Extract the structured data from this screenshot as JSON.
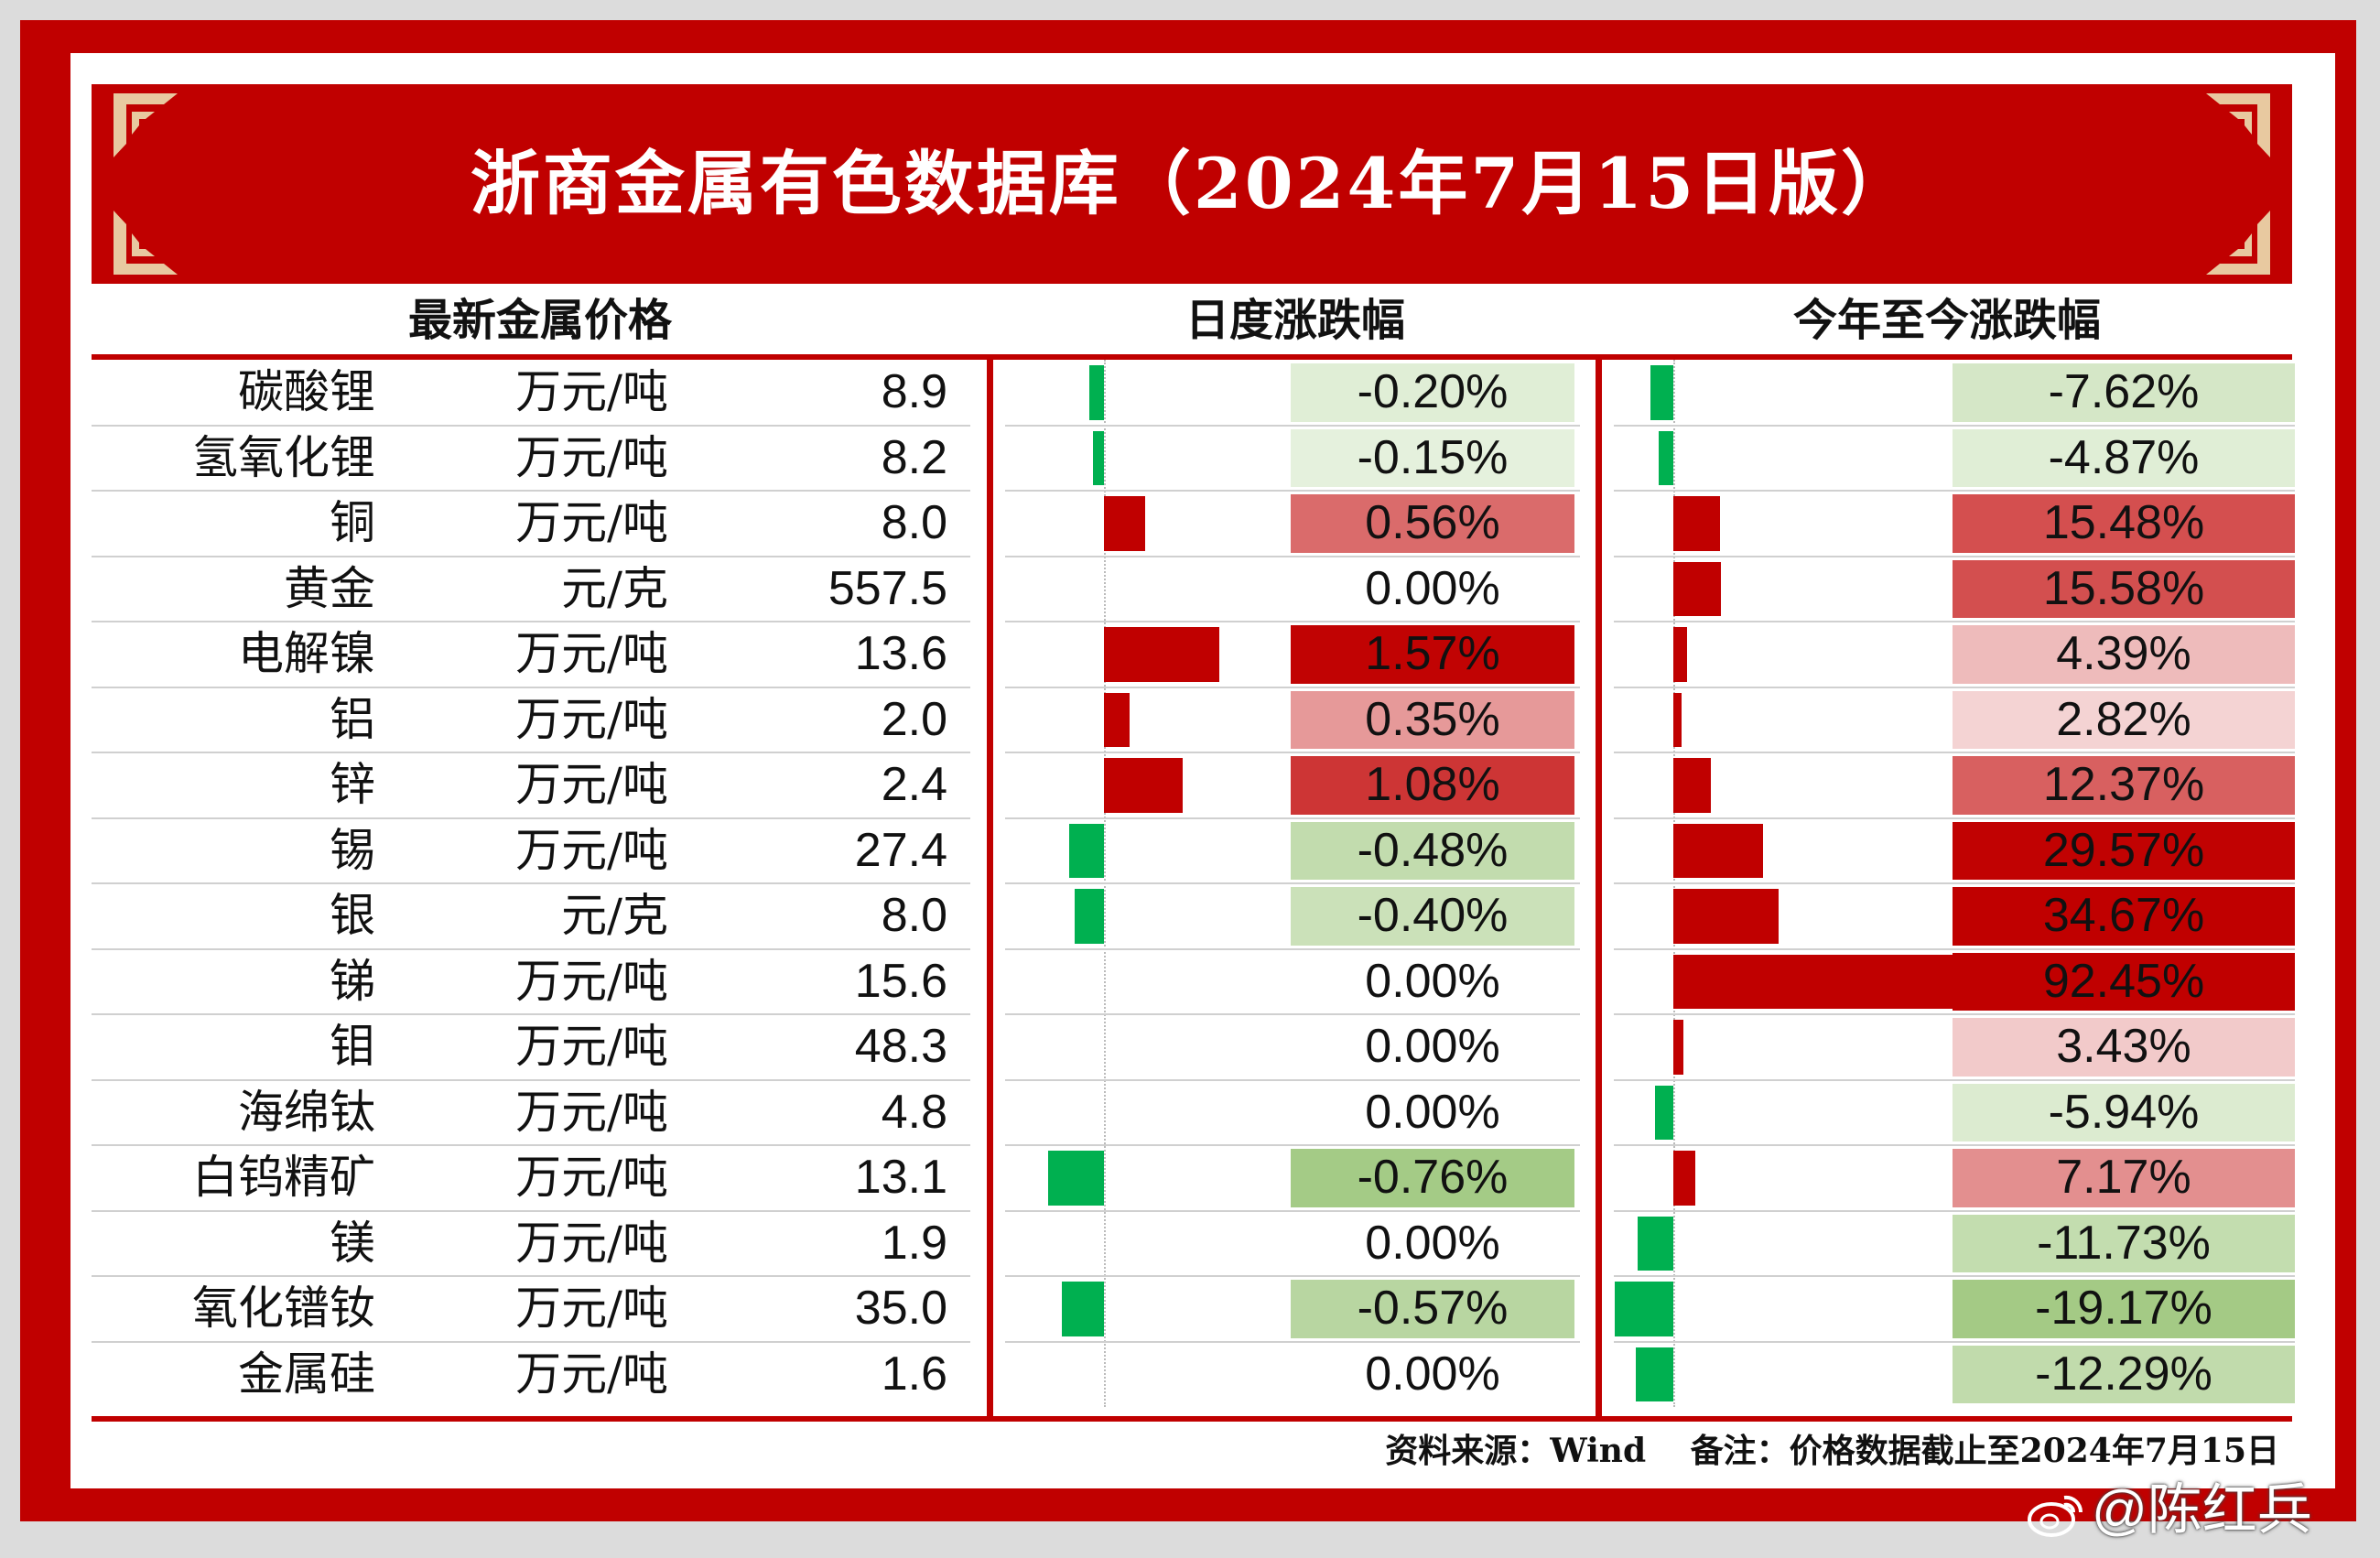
{
  "title": "浙商金属有色数据库（2024年7月15日版）",
  "sections": {
    "prices": "最新金属价格",
    "daily": "日度涨跌幅",
    "ytd": "今年至今涨跌幅"
  },
  "rows": [
    {
      "name": "碳酸锂",
      "unit": "万元/吨",
      "price": "8.9",
      "daily": "-0.20%",
      "daily_value": -0.2,
      "ytd": "-7.62%",
      "ytd_value": -7.62
    },
    {
      "name": "氢氧化锂",
      "unit": "万元/吨",
      "price": "8.2",
      "daily": "-0.15%",
      "daily_value": -0.15,
      "ytd": "-4.87%",
      "ytd_value": -4.87
    },
    {
      "name": "铜",
      "unit": "万元/吨",
      "price": "8.0",
      "daily": "0.56%",
      "daily_value": 0.56,
      "ytd": "15.48%",
      "ytd_value": 15.48
    },
    {
      "name": "黄金",
      "unit": "元/克",
      "price": "557.5",
      "daily": "0.00%",
      "daily_value": 0.0,
      "ytd": "15.58%",
      "ytd_value": 15.58
    },
    {
      "name": "电解镍",
      "unit": "万元/吨",
      "price": "13.6",
      "daily": "1.57%",
      "daily_value": 1.57,
      "ytd": "4.39%",
      "ytd_value": 4.39
    },
    {
      "name": "铝",
      "unit": "万元/吨",
      "price": "2.0",
      "daily": "0.35%",
      "daily_value": 0.35,
      "ytd": "2.82%",
      "ytd_value": 2.82
    },
    {
      "name": "锌",
      "unit": "万元/吨",
      "price": "2.4",
      "daily": "1.08%",
      "daily_value": 1.08,
      "ytd": "12.37%",
      "ytd_value": 12.37
    },
    {
      "name": "锡",
      "unit": "万元/吨",
      "price": "27.4",
      "daily": "-0.48%",
      "daily_value": -0.48,
      "ytd": "29.57%",
      "ytd_value": 29.57
    },
    {
      "name": "银",
      "unit": "元/克",
      "price": "8.0",
      "daily": "-0.40%",
      "daily_value": -0.4,
      "ytd": "34.67%",
      "ytd_value": 34.67
    },
    {
      "name": "锑",
      "unit": "万元/吨",
      "price": "15.6",
      "daily": "0.00%",
      "daily_value": 0.0,
      "ytd": "92.45%",
      "ytd_value": 92.45
    },
    {
      "name": "钼",
      "unit": "万元/吨",
      "price": "48.3",
      "daily": "0.00%",
      "daily_value": 0.0,
      "ytd": "3.43%",
      "ytd_value": 3.43
    },
    {
      "name": "海绵钛",
      "unit": "万元/吨",
      "price": "4.8",
      "daily": "0.00%",
      "daily_value": 0.0,
      "ytd": "-5.94%",
      "ytd_value": -5.94
    },
    {
      "name": "白钨精矿",
      "unit": "万元/吨",
      "price": "13.1",
      "daily": "-0.76%",
      "daily_value": -0.76,
      "ytd": "7.17%",
      "ytd_value": 7.17
    },
    {
      "name": "镁",
      "unit": "万元/吨",
      "price": "1.9",
      "daily": "0.00%",
      "daily_value": 0.0,
      "ytd": "-11.73%",
      "ytd_value": -11.73
    },
    {
      "name": "氧化镨钕",
      "unit": "万元/吨",
      "price": "35.0",
      "daily": "-0.57%",
      "daily_value": -0.57,
      "ytd": "-19.17%",
      "ytd_value": -19.17
    },
    {
      "name": "金属硅",
      "unit": "万元/吨",
      "price": "1.6",
      "daily": "0.00%",
      "daily_value": 0.0,
      "ytd": "-12.29%",
      "ytd_value": -12.29
    }
  ],
  "footer": "资料来源：Wind　 备注：价格数据截止至2024年7月15日",
  "watermark": "@陈红兵",
  "colors": {
    "brand_red": "#c00000",
    "up_bar": "#c00000",
    "down_bar": "#00b050",
    "cell_white": "#ffffff"
  },
  "icons": [
    "weibo-icon"
  ]
}
